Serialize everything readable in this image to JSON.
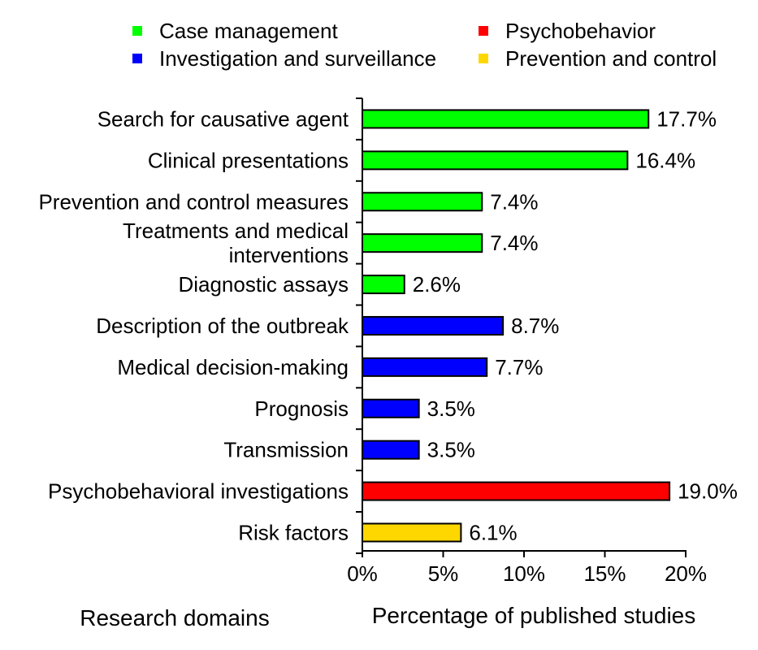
{
  "chart_data": {
    "type": "bar",
    "orientation": "horizontal",
    "legend": {
      "placement": "top",
      "items": [
        {
          "label": "Case management",
          "color": "#00ff00"
        },
        {
          "label": "Psychobehavior",
          "color": "#ff0000"
        },
        {
          "label": "Investigation and surveillance",
          "color": "#0000ff"
        },
        {
          "label": "Prevention and control",
          "color": "#ffd700"
        }
      ]
    },
    "categories": [
      {
        "label": [
          "Search for causative agent"
        ],
        "value": 17.7,
        "value_label": "17.7%",
        "group": "Case management"
      },
      {
        "label": [
          "Clinical presentations"
        ],
        "value": 16.4,
        "value_label": "16.4%",
        "group": "Case management"
      },
      {
        "label": [
          "Prevention and control measures"
        ],
        "value": 7.4,
        "value_label": "7.4%",
        "group": "Case management"
      },
      {
        "label": [
          "Treatments and medical",
          "interventions"
        ],
        "value": 7.4,
        "value_label": "7.4%",
        "group": "Case management"
      },
      {
        "label": [
          "Diagnostic assays"
        ],
        "value": 2.6,
        "value_label": "2.6%",
        "group": "Case management"
      },
      {
        "label": [
          "Description of the outbreak"
        ],
        "value": 8.7,
        "value_label": "8.7%",
        "group": "Investigation and surveillance"
      },
      {
        "label": [
          "Medical decision-making"
        ],
        "value": 7.7,
        "value_label": "7.7%",
        "group": "Investigation and surveillance"
      },
      {
        "label": [
          "Prognosis"
        ],
        "value": 3.5,
        "value_label": "3.5%",
        "group": "Investigation and surveillance"
      },
      {
        "label": [
          "Transmission"
        ],
        "value": 3.5,
        "value_label": "3.5%",
        "group": "Investigation and surveillance"
      },
      {
        "label": [
          "Psychobehavioral investigations"
        ],
        "value": 19.0,
        "value_label": "19.0%",
        "group": "Psychobehavior"
      },
      {
        "label": [
          "Risk factors"
        ],
        "value": 6.1,
        "value_label": "6.1%",
        "group": "Prevention and control"
      }
    ],
    "xlim": [
      0,
      20
    ],
    "x_ticks": [
      0,
      5,
      10,
      15,
      20
    ],
    "x_tick_labels": [
      "0%",
      "5%",
      "10%",
      "15%",
      "20%"
    ],
    "xlabel": "Percentage of published studies",
    "ylabel": "Research domains",
    "grid": false
  }
}
